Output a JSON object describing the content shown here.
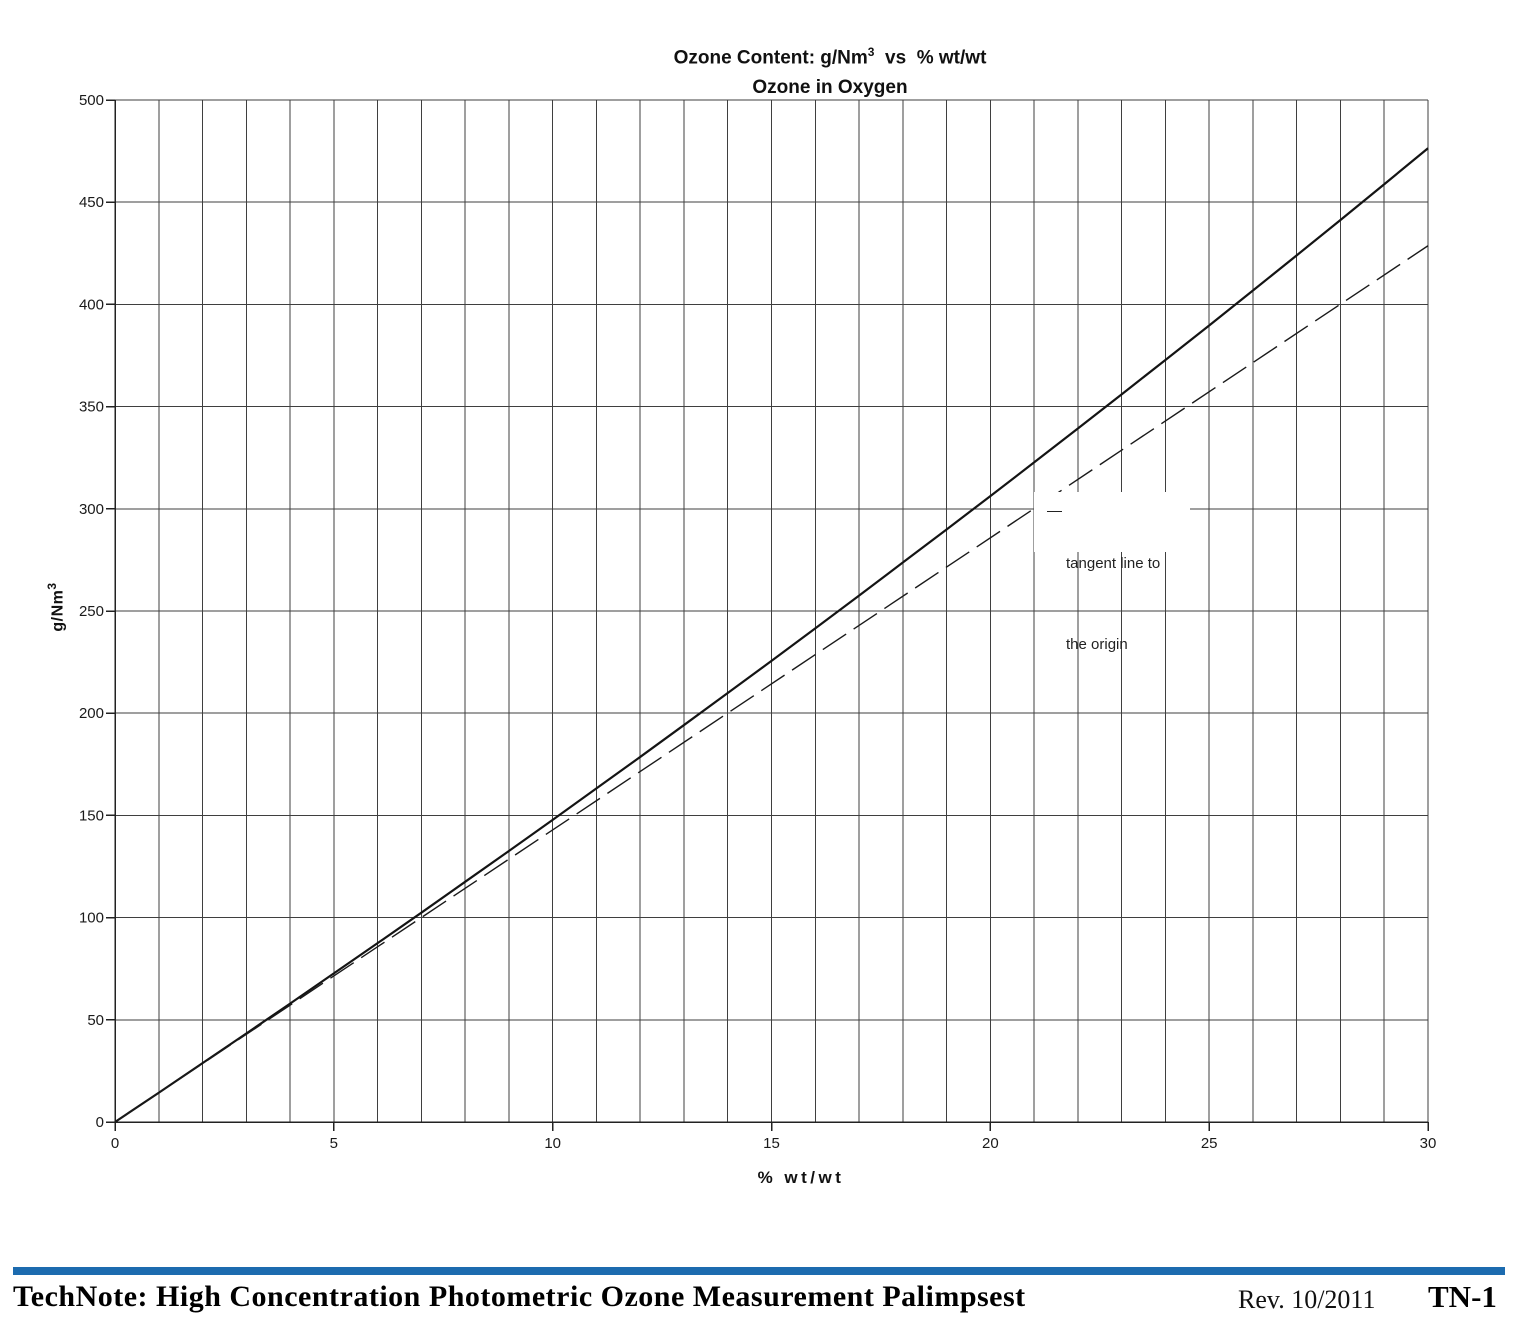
{
  "page": {
    "background": "#ffffff"
  },
  "labels": {
    "title_part1": "Ozone Content: g/Nm",
    "title_sup": "3",
    "title_part2": "  vs  % wt/wt",
    "subtitle": "Ozone in Oxygen",
    "ylabel_part1": "g/Nm",
    "ylabel_sup": "3",
    "xlabel": "% wt/wt"
  },
  "footer": {
    "doc_title": "TechNote: High Concentration Photometric Ozone Measurement Palimpsest",
    "revision": "Rev. 10/2011",
    "doc_code": "TN-1",
    "bar_color": "#1c6baf"
  },
  "chart_data": {
    "type": "line",
    "title": "Ozone Content: g/Nm3 vs % wt/wt",
    "subtitle": "Ozone in Oxygen",
    "xlabel": "% wt/wt",
    "ylabel": "g/Nm3",
    "xlim": [
      0,
      30
    ],
    "ylim": [
      0,
      500
    ],
    "x_major_ticks": [
      0,
      5,
      10,
      15,
      20,
      25,
      30
    ],
    "x_minor_step": 1,
    "y_ticks": [
      0,
      50,
      100,
      150,
      200,
      250,
      300,
      350,
      400,
      450,
      500
    ],
    "grid": "both",
    "grid_color": "#3f3f3f",
    "series": [
      {
        "name": "ozone-content-curve",
        "style": "solid",
        "x": [
          0,
          1,
          2,
          3,
          4,
          5,
          6,
          7,
          8,
          9,
          10,
          11,
          12,
          13,
          14,
          15,
          16,
          17,
          18,
          19,
          20,
          21,
          22,
          23,
          24,
          25,
          26,
          27,
          28,
          29,
          30
        ],
        "y": [
          0,
          14.3,
          28.8,
          43.3,
          57.9,
          72.7,
          87.5,
          102.4,
          117.5,
          132.6,
          147.8,
          163.2,
          178.6,
          194.2,
          209.9,
          225.6,
          241.5,
          257.5,
          273.7,
          289.9,
          306.2,
          322.7,
          339.3,
          356.0,
          372.8,
          389.7,
          406.8,
          424.0,
          441.3,
          458.8,
          476.4
        ]
      },
      {
        "name": "tangent-line-to-origin",
        "style": "dashed",
        "x": [
          0,
          30
        ],
        "y": [
          0,
          428.7
        ]
      }
    ],
    "annotation": {
      "line1": "tangent line to",
      "line2": "the origin",
      "anchor_x": 21.5,
      "anchor_y": 300
    }
  }
}
